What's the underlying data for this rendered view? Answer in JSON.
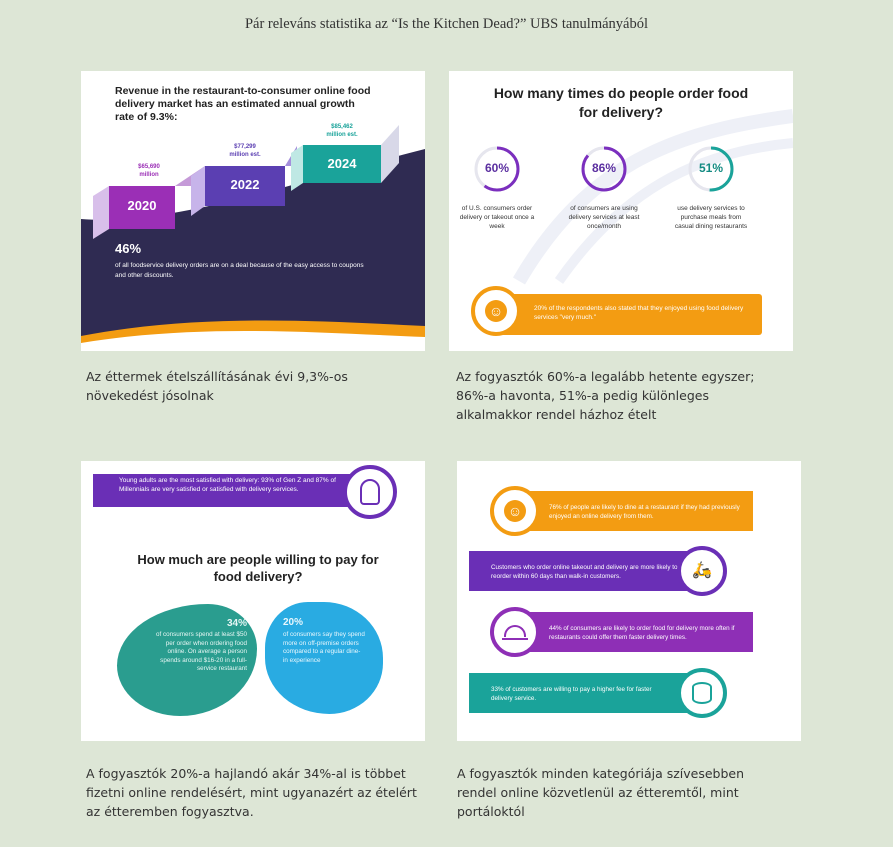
{
  "page_title": "Pár releváns statistika az “Is the Kitchen Dead?”  UBS tanulmányából",
  "card1": {
    "heading": "Revenue in the restaurant-to-consumer online food delivery market has an estimated annual growth rate of 9.3%:",
    "steps": [
      {
        "year": "2020",
        "amount": "$65,690",
        "unit": "million"
      },
      {
        "year": "2022",
        "amount": "$77,299",
        "unit": "million est."
      },
      {
        "year": "2024",
        "amount": "$85,462",
        "unit": "million est."
      }
    ],
    "stat_value": "46%",
    "stat_text": "of all foodservice delivery orders are on a deal because of the easy access to coupons and other discounts.",
    "caption": " Az éttermek ételszállításának évi 9,3%-os növekedést jósolnak"
  },
  "card2": {
    "heading": "How many times do people order food for delivery?",
    "rings": [
      {
        "value": "60%",
        "fraction": 0.6,
        "color": "#7b2fbe",
        "text": "of U.S. consumers order delivery or takeout once a week"
      },
      {
        "value": "86%",
        "fraction": 0.86,
        "color": "#7b2fbe",
        "text": "of consumers are using delivery services at least once/month"
      },
      {
        "value": "51%",
        "fraction": 0.51,
        "color": "#1aa39a",
        "text": "use delivery services to purchase meals from casual dining restaurants"
      }
    ],
    "banner_text": "20% of the respondents also stated that they enjoyed using food delivery services \"very much.\"",
    "caption": "Az fogyasztók 60%-a legalább hetente egyszer; 86%-a havonta, 51%-a pedig különleges alkalmakkor rendel házhoz ételt"
  },
  "card3": {
    "banner_text": "Young adults are the most satisfied with delivery: 93% of Gen Z and 87% of Millennials are very satisfied or satisfied with delivery services.",
    "heading": "How much are people willing to pay for food delivery?",
    "left_value": "34%",
    "left_text": "of consumers spend at least $50 per order when ordering food online. On average a person spends around $16-20 in a full-service restaurant",
    "right_value": "20%",
    "right_text": "of consumers say they spend more on off-premise orders compared to a regular dine-in experience",
    "caption": "A  fogyasztók 20%-a hajlandó akár 34%-al is többet fizetni online rendelésért, mint ugyanazért az ételért az étteremben fogyasztva."
  },
  "card4": {
    "rows": [
      {
        "text": "76% of people are likely to dine at a restaurant if they had previously enjoyed an online delivery from them.",
        "color": "#f39c12"
      },
      {
        "text": "Customers who order online takeout and delivery are more likely to reorder within 60 days than walk-in customers.",
        "color": "#6a2fb6"
      },
      {
        "text": "44% of consumers are likely to order food for delivery more often if restaurants could offer them faster delivery times.",
        "color": "#8e2fb6"
      },
      {
        "text": "33% of customers are willing to pay a higher fee for faster delivery service.",
        "color": "#1aa39a"
      }
    ],
    "caption": "A fogyasztók minden kategóriája szívesebben rendel online közvetlenül az étteremtől, mint portáloktól"
  }
}
